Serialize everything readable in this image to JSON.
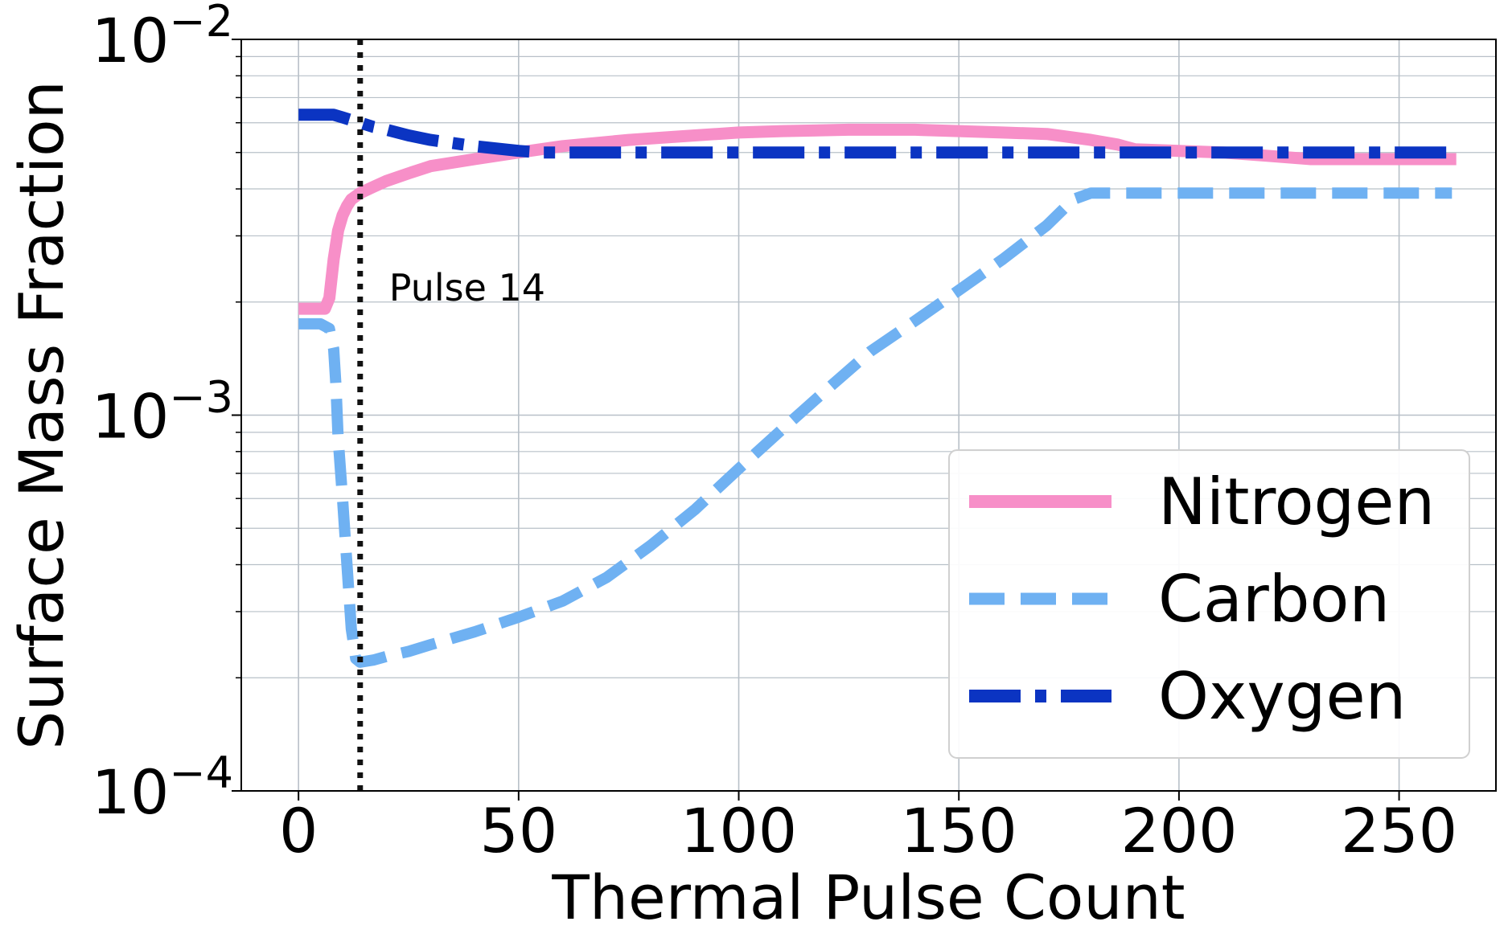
{
  "chart_data": {
    "type": "line",
    "title": "",
    "xlabel": "Thermal Pulse Count",
    "ylabel": "Surface Mass Fraction",
    "xlim": [
      -13,
      272
    ],
    "ylim": [
      0.0001,
      0.01
    ],
    "y_scale": "log",
    "x_ticks": [
      0,
      50,
      100,
      150,
      200,
      250
    ],
    "x_tick_labels": [
      "0",
      "50",
      "100",
      "150",
      "200",
      "250"
    ],
    "y_ticks": [
      {
        "value": 0.0001,
        "base": "10",
        "exp": "−4"
      },
      {
        "value": 0.001,
        "base": "10",
        "exp": "−3"
      },
      {
        "value": 0.01,
        "base": "10",
        "exp": "−2"
      }
    ],
    "grid": true,
    "legend_position": "lower-right",
    "vline": {
      "x": 14,
      "label": "Pulse 14"
    },
    "series": [
      {
        "name": "Nitrogen",
        "color": "#f78fc8",
        "style": "solid",
        "x": [
          0,
          3,
          6,
          7,
          8,
          9,
          10,
          11,
          12,
          14,
          17,
          20,
          25,
          30,
          40,
          50,
          60,
          75,
          90,
          100,
          110,
          125,
          140,
          150,
          160,
          170,
          180,
          186,
          190,
          200,
          210,
          220,
          230,
          245,
          263
        ],
        "y": [
          0.00192,
          0.00192,
          0.00192,
          0.00205,
          0.0026,
          0.0031,
          0.0034,
          0.0036,
          0.00375,
          0.0039,
          0.00405,
          0.0042,
          0.0044,
          0.0046,
          0.0048,
          0.005,
          0.0052,
          0.0054,
          0.00555,
          0.00565,
          0.0057,
          0.00575,
          0.00575,
          0.0057,
          0.00565,
          0.0056,
          0.0054,
          0.00525,
          0.0051,
          0.00505,
          0.005,
          0.0049,
          0.0048,
          0.0048,
          0.0048
        ]
      },
      {
        "name": "Carbon",
        "color": "#6fb1f2",
        "style": "dashed",
        "x": [
          0,
          5,
          7,
          8,
          8.5,
          9,
          10,
          11,
          12,
          13,
          14,
          17,
          20,
          25,
          30,
          40,
          50,
          60,
          70,
          80,
          90,
          100,
          110,
          120,
          130,
          140,
          150,
          160,
          170,
          176,
          180,
          200,
          220,
          240,
          262
        ],
        "y": [
          0.00175,
          0.00175,
          0.0017,
          0.0015,
          0.0012,
          0.00087,
          0.0006,
          0.0004,
          0.00027,
          0.000225,
          0.00022,
          0.000223,
          0.000228,
          0.000235,
          0.000245,
          0.000265,
          0.00029,
          0.00032,
          0.00037,
          0.00045,
          0.00056,
          0.00072,
          0.00092,
          0.00117,
          0.00148,
          0.00178,
          0.00215,
          0.0026,
          0.0032,
          0.00375,
          0.0039,
          0.0039,
          0.0039,
          0.0039,
          0.0039
        ]
      },
      {
        "name": "Oxygen",
        "color": "#0b34c2",
        "style": "dashdot",
        "x": [
          0,
          5,
          8,
          10,
          14,
          17,
          20,
          25,
          30,
          40,
          50,
          55,
          60,
          80,
          100,
          150,
          200,
          230,
          263
        ],
        "y": [
          0.0063,
          0.0063,
          0.0063,
          0.0062,
          0.006,
          0.00585,
          0.00575,
          0.00555,
          0.0054,
          0.0052,
          0.00505,
          0.005,
          0.005,
          0.005,
          0.005,
          0.005,
          0.005,
          0.005,
          0.005
        ]
      }
    ]
  }
}
